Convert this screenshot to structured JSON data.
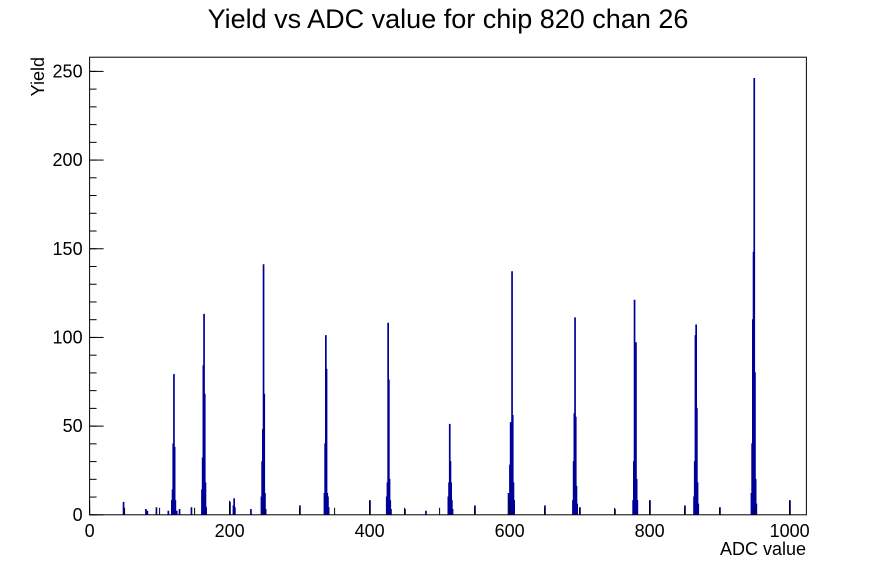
{
  "chart_data": {
    "type": "bar",
    "title": "Yield vs ADC value for chip 820 chan 26",
    "xlabel": "ADC value",
    "ylabel": "Yield",
    "xlim": [
      0,
      1024
    ],
    "ylim": [
      0,
      258
    ],
    "x_ticks": [
      0,
      200,
      400,
      600,
      800,
      1000
    ],
    "y_ticks": [
      0,
      50,
      100,
      150,
      200,
      250
    ],
    "x_minor_step": 50,
    "y_minor_step": 10,
    "grid": false,
    "series_color": "#000099",
    "bins": [
      {
        "x": 48,
        "y": 7
      },
      {
        "x": 80,
        "y": 3
      },
      {
        "x": 82,
        "y": 2
      },
      {
        "x": 95,
        "y": 4
      },
      {
        "x": 112,
        "y": 2
      },
      {
        "x": 117,
        "y": 8
      },
      {
        "x": 118,
        "y": 14
      },
      {
        "x": 119,
        "y": 40
      },
      {
        "x": 120,
        "y": 79
      },
      {
        "x": 121,
        "y": 38
      },
      {
        "x": 122,
        "y": 8
      },
      {
        "x": 124,
        "y": 2
      },
      {
        "x": 128,
        "y": 3
      },
      {
        "x": 145,
        "y": 4
      },
      {
        "x": 160,
        "y": 14
      },
      {
        "x": 161,
        "y": 32
      },
      {
        "x": 162,
        "y": 84
      },
      {
        "x": 163,
        "y": 113
      },
      {
        "x": 164,
        "y": 68
      },
      {
        "x": 165,
        "y": 18
      },
      {
        "x": 166,
        "y": 4
      },
      {
        "x": 200,
        "y": 7
      },
      {
        "x": 205,
        "y": 5
      },
      {
        "x": 206,
        "y": 9
      },
      {
        "x": 207,
        "y": 4
      },
      {
        "x": 230,
        "y": 3
      },
      {
        "x": 245,
        "y": 10
      },
      {
        "x": 246,
        "y": 30
      },
      {
        "x": 247,
        "y": 48
      },
      {
        "x": 248,
        "y": 141
      },
      {
        "x": 249,
        "y": 68
      },
      {
        "x": 250,
        "y": 12
      },
      {
        "x": 251,
        "y": 3
      },
      {
        "x": 300,
        "y": 5
      },
      {
        "x": 335,
        "y": 12
      },
      {
        "x": 336,
        "y": 40
      },
      {
        "x": 337,
        "y": 101
      },
      {
        "x": 338,
        "y": 82
      },
      {
        "x": 339,
        "y": 12
      },
      {
        "x": 340,
        "y": 10
      },
      {
        "x": 341,
        "y": 4
      },
      {
        "x": 400,
        "y": 8
      },
      {
        "x": 424,
        "y": 10
      },
      {
        "x": 425,
        "y": 18
      },
      {
        "x": 426,
        "y": 108
      },
      {
        "x": 427,
        "y": 76
      },
      {
        "x": 428,
        "y": 20
      },
      {
        "x": 429,
        "y": 8
      },
      {
        "x": 430,
        "y": 3
      },
      {
        "x": 450,
        "y": 3
      },
      {
        "x": 480,
        "y": 2
      },
      {
        "x": 512,
        "y": 10
      },
      {
        "x": 513,
        "y": 18
      },
      {
        "x": 514,
        "y": 51
      },
      {
        "x": 515,
        "y": 30
      },
      {
        "x": 516,
        "y": 18
      },
      {
        "x": 517,
        "y": 8
      },
      {
        "x": 518,
        "y": 3
      },
      {
        "x": 550,
        "y": 5
      },
      {
        "x": 598,
        "y": 12
      },
      {
        "x": 600,
        "y": 28
      },
      {
        "x": 601,
        "y": 52
      },
      {
        "x": 602,
        "y": 25
      },
      {
        "x": 603,
        "y": 137
      },
      {
        "x": 604,
        "y": 56
      },
      {
        "x": 605,
        "y": 18
      },
      {
        "x": 606,
        "y": 8
      },
      {
        "x": 650,
        "y": 5
      },
      {
        "x": 690,
        "y": 8
      },
      {
        "x": 691,
        "y": 30
      },
      {
        "x": 692,
        "y": 57
      },
      {
        "x": 693,
        "y": 111
      },
      {
        "x": 694,
        "y": 55
      },
      {
        "x": 695,
        "y": 16
      },
      {
        "x": 696,
        "y": 6
      },
      {
        "x": 700,
        "y": 4
      },
      {
        "x": 750,
        "y": 3
      },
      {
        "x": 776,
        "y": 8
      },
      {
        "x": 777,
        "y": 30
      },
      {
        "x": 778,
        "y": 121
      },
      {
        "x": 779,
        "y": 40
      },
      {
        "x": 780,
        "y": 97
      },
      {
        "x": 781,
        "y": 20
      },
      {
        "x": 782,
        "y": 8
      },
      {
        "x": 800,
        "y": 8
      },
      {
        "x": 850,
        "y": 5
      },
      {
        "x": 863,
        "y": 10
      },
      {
        "x": 864,
        "y": 30
      },
      {
        "x": 865,
        "y": 101
      },
      {
        "x": 866,
        "y": 107
      },
      {
        "x": 867,
        "y": 60
      },
      {
        "x": 868,
        "y": 18
      },
      {
        "x": 869,
        "y": 6
      },
      {
        "x": 900,
        "y": 4
      },
      {
        "x": 945,
        "y": 12
      },
      {
        "x": 946,
        "y": 40
      },
      {
        "x": 947,
        "y": 110
      },
      {
        "x": 948,
        "y": 148
      },
      {
        "x": 949,
        "y": 246
      },
      {
        "x": 950,
        "y": 80
      },
      {
        "x": 951,
        "y": 20
      },
      {
        "x": 952,
        "y": 6
      },
      {
        "x": 1000,
        "y": 8
      }
    ]
  }
}
